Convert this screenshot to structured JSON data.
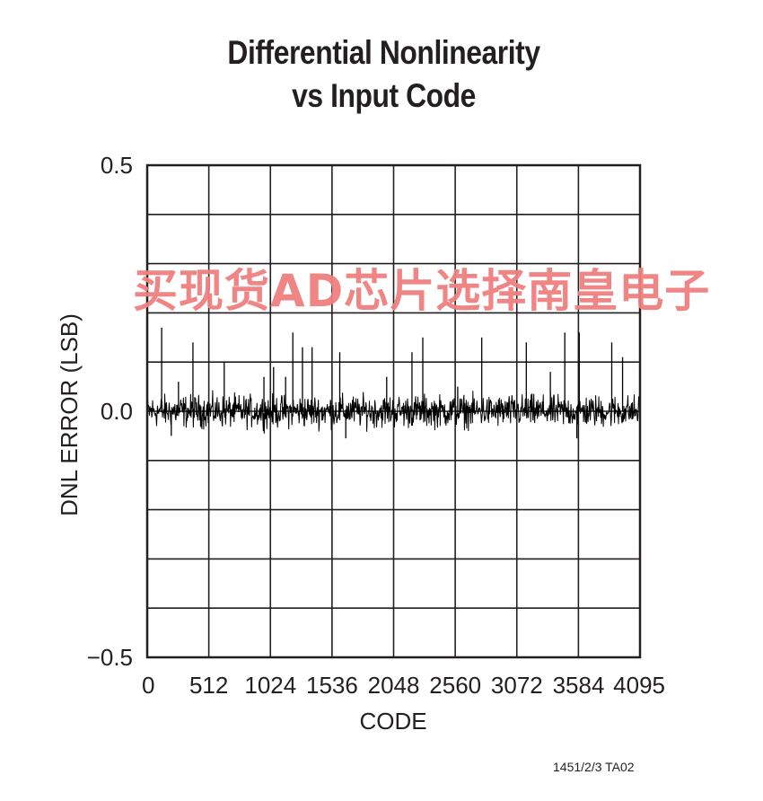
{
  "chart_data": {
    "type": "line",
    "title": "Differential Nonlinearity",
    "subtitle": "vs Input Code",
    "xlabel": "CODE",
    "ylabel": "DNL ERROR (LSB)",
    "xlim": [
      0,
      4095
    ],
    "ylim": [
      -0.5,
      0.5
    ],
    "x_ticks": [
      0,
      512,
      1024,
      1536,
      2048,
      2560,
      3072,
      3584,
      4095
    ],
    "x_tick_labels": [
      "0",
      "512",
      "1024",
      "1536",
      "2048",
      "2560",
      "3072",
      "3584",
      "4095"
    ],
    "y_ticks": [
      0.5,
      0.0,
      -0.5
    ],
    "y_tick_labels": [
      "0.5",
      "0.0",
      "−0.5"
    ],
    "grid": true,
    "grid_x_divisions": 8,
    "grid_y_divisions": 10,
    "series": [
      {
        "color": "#000000",
        "noise_band": [
          -0.03,
          0.03
        ],
        "spikes": [
          {
            "x": 120,
            "y": 0.17
          },
          {
            "x": 260,
            "y": 0.06
          },
          {
            "x": 380,
            "y": 0.14
          },
          {
            "x": 640,
            "y": 0.1
          },
          {
            "x": 970,
            "y": 0.07
          },
          {
            "x": 1050,
            "y": 0.09
          },
          {
            "x": 1150,
            "y": 0.07
          },
          {
            "x": 1210,
            "y": 0.16
          },
          {
            "x": 1290,
            "y": 0.13
          },
          {
            "x": 1370,
            "y": 0.13
          },
          {
            "x": 1600,
            "y": 0.12
          },
          {
            "x": 1990,
            "y": 0.07
          },
          {
            "x": 2200,
            "y": 0.12
          },
          {
            "x": 2290,
            "y": 0.15
          },
          {
            "x": 2580,
            "y": 0.05
          },
          {
            "x": 2780,
            "y": 0.15
          },
          {
            "x": 3150,
            "y": 0.14
          },
          {
            "x": 3350,
            "y": 0.08
          },
          {
            "x": 3470,
            "y": 0.16
          },
          {
            "x": 3590,
            "y": 0.16
          },
          {
            "x": 3860,
            "y": 0.14
          },
          {
            "x": 3950,
            "y": 0.11
          }
        ],
        "dips": [
          {
            "x": 200,
            "y": -0.05
          },
          {
            "x": 1650,
            "y": -0.055
          },
          {
            "x": 3570,
            "y": -0.055
          }
        ]
      }
    ]
  },
  "footnote": "1451/2/3 TA02",
  "watermark": "买现货AD芯片选择南皇电子"
}
